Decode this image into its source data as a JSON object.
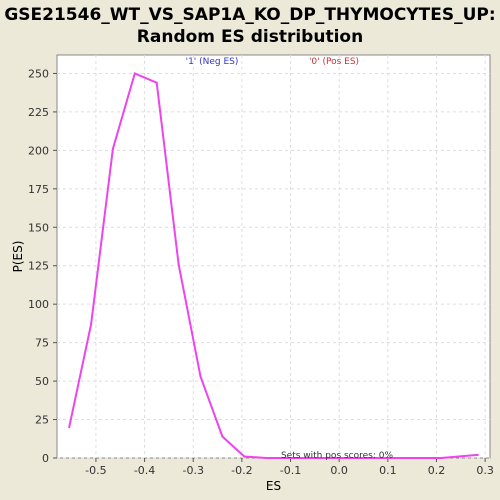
{
  "title_line1": "GSE21546_WT_VS_SAP1A_KO_DP_THYMOCYTES_UP:",
  "title_line2": "Random ES distribution",
  "colors": {
    "background": "#ece9d8",
    "plot_bg": "#ffffff",
    "line": "#ee44ee",
    "neg_label": "#3333cc",
    "pos_label": "#cc3333",
    "grid": "#dddddd"
  },
  "chart_data": {
    "type": "line",
    "xlabel": "ES",
    "ylabel": "P(ES)",
    "xlim": [
      -0.58,
      0.31
    ],
    "ylim": [
      0,
      262
    ],
    "xticks": [
      -0.5,
      -0.4,
      -0.3,
      -0.2,
      -0.1,
      0.0,
      0.1,
      0.2,
      0.3
    ],
    "xtick_labels": [
      "-0.5",
      "-0.4",
      "-0.3",
      "-0.2",
      "-0.1",
      "0.0",
      "0.1",
      "0.2",
      "0.3"
    ],
    "yticks": [
      0,
      25,
      50,
      75,
      100,
      125,
      150,
      175,
      200,
      225,
      250
    ],
    "ytick_labels": [
      "0",
      "25",
      "50",
      "75",
      "100",
      "125",
      "150",
      "175",
      "200",
      "225",
      "250"
    ],
    "grid": true,
    "series": [
      {
        "x": [
          -0.555,
          -0.51,
          -0.465,
          -0.42,
          -0.375,
          -0.33,
          -0.285,
          -0.24,
          -0.195,
          -0.15,
          -0.105,
          -0.06,
          -0.015,
          0.03,
          0.075,
          0.12,
          0.165,
          0.21,
          0.245,
          0.285
        ],
        "y": [
          20,
          87,
          201,
          250,
          244,
          126,
          53,
          14,
          1,
          0,
          0,
          0,
          0,
          0,
          0,
          0,
          0,
          0,
          1,
          2
        ]
      }
    ],
    "legend": {
      "neg_label": "'1' (Neg ES)",
      "pos_label": "'0' (Pos ES)"
    },
    "annotation": "Sets with pos scores: 0%"
  }
}
